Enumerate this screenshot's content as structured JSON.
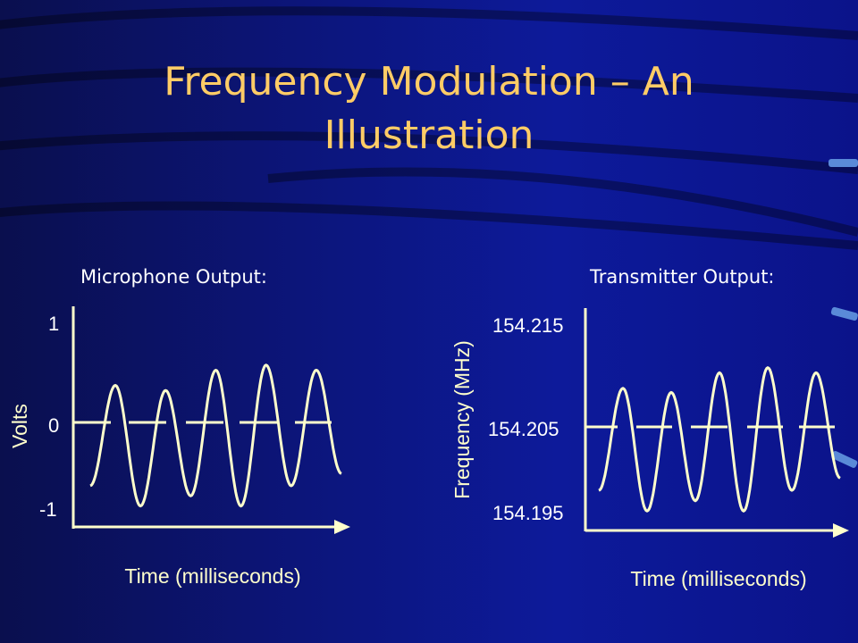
{
  "slide": {
    "title_line1": "Frequency Modulation – An",
    "title_line2": "Illustration",
    "left_heading": "Microphone Output:",
    "right_heading": "Transmitter Output:"
  },
  "colors": {
    "title": "#ffcc66",
    "heading": "#ffffff",
    "trace": "#ffffcc",
    "background": "#0d1a9a"
  },
  "chart_data": [
    {
      "type": "line",
      "title": "Microphone Output:",
      "ylabel": "Volts",
      "xlabel": "Time (milliseconds)",
      "ytick_labels": [
        "1",
        "0",
        "-1"
      ],
      "ylim": [
        -1,
        1
      ],
      "series": [
        {
          "values": [
            -0.62,
            0.37,
            -0.82,
            0.32,
            -0.72,
            0.52,
            -0.82,
            0.57,
            -0.62,
            0.52,
            -0.5
          ]
        }
      ]
    },
    {
      "type": "line",
      "title": "Transmitter Output:",
      "ylabel": "Frequency (MHz)",
      "xlabel": "Time (milliseconds)",
      "ytick_labels": [
        "154.215",
        "154.205",
        "154.195"
      ],
      "ylim": [
        154.195,
        154.215
      ],
      "series": [
        {
          "values": [
            154.1988,
            154.2087,
            154.1968,
            154.2083,
            154.1978,
            154.2102,
            154.1968,
            154.2107,
            154.1988,
            154.2102,
            154.2
          ]
        }
      ]
    }
  ]
}
